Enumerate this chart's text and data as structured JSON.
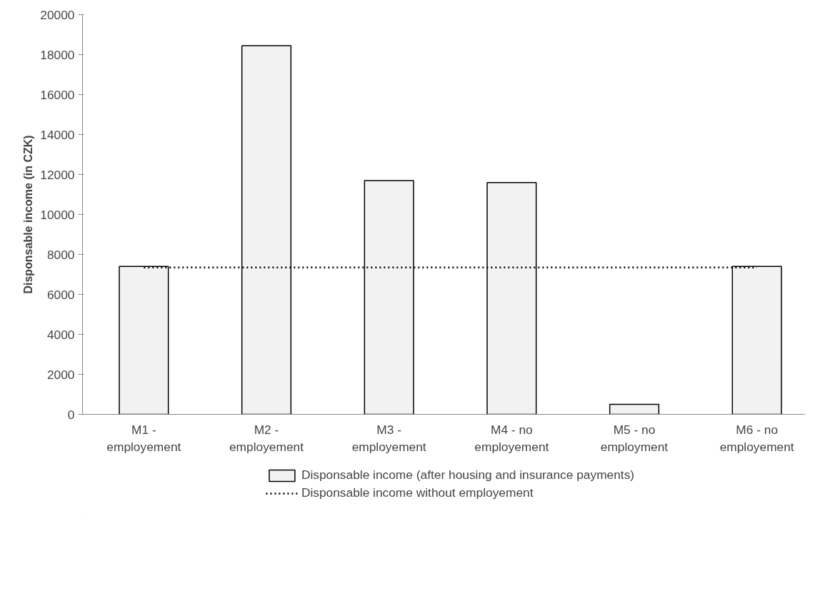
{
  "chart_data": {
    "type": "bar",
    "ylabel": "Disponsable income (in CZK)",
    "categories": [
      "M1 - employement",
      "M2 - employement",
      "M3 - employement",
      "M4 - no employement",
      "M5 - no employment",
      "M6 - no employement"
    ],
    "series": [
      {
        "name": "Disponsable income (after housing and insurance payments)",
        "color": "#f2f2f2",
        "values": [
          7400,
          18450,
          11700,
          11600,
          500,
          7400
        ]
      },
      {
        "name": "Disponsable income without employement",
        "type": "line",
        "color": "#000000",
        "line_style": "dotted",
        "marker": "none",
        "values": [
          7350,
          7350,
          7350,
          7350,
          7350,
          7350
        ]
      }
    ],
    "ylim": [
      0,
      20000
    ],
    "yticks": [
      0,
      2000,
      4000,
      6000,
      8000,
      10000,
      12000,
      14000,
      16000,
      18000,
      20000
    ],
    "grid": false,
    "legend": "bottom"
  }
}
